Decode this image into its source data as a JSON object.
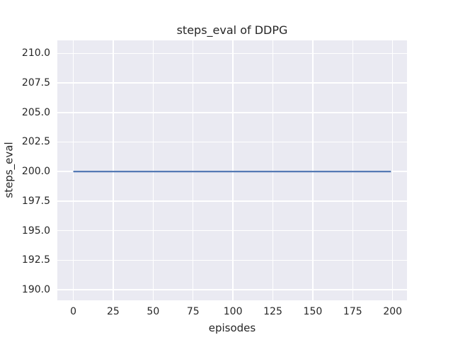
{
  "chart_data": {
    "type": "line",
    "title": "steps_eval of DDPG",
    "xlabel": "episodes",
    "ylabel": "steps_eval",
    "series": [
      {
        "name": "steps_eval",
        "color": "#4c72b0",
        "x": [
          0,
          199
        ],
        "y": [
          200,
          200
        ],
        "note": "constant flat line at 200 steps for every evaluation episode from 0 to 199; two endpoints fully describe the polyline"
      }
    ],
    "xlim": [
      -10,
      209
    ],
    "ylim": [
      189.1,
      211.1
    ],
    "xticks": [
      0,
      25,
      50,
      75,
      100,
      125,
      150,
      175,
      200
    ],
    "xtick_labels": [
      "0",
      "25",
      "50",
      "75",
      "100",
      "125",
      "150",
      "175",
      "200"
    ],
    "yticks": [
      210.0,
      207.5,
      205.0,
      202.5,
      200.0,
      197.5,
      195.0,
      192.5,
      190.0
    ],
    "ytick_labels": [
      "210.0",
      "207.5",
      "205.0",
      "202.5",
      "200.0",
      "197.5",
      "195.0",
      "192.5",
      "190.0"
    ],
    "grid": true,
    "legend": false,
    "style": {
      "axes_background": "#eaeaf2",
      "figure_background": "#ffffff",
      "grid_color": "#ffffff",
      "text_color": "#262626",
      "line_width": 2.2
    }
  }
}
